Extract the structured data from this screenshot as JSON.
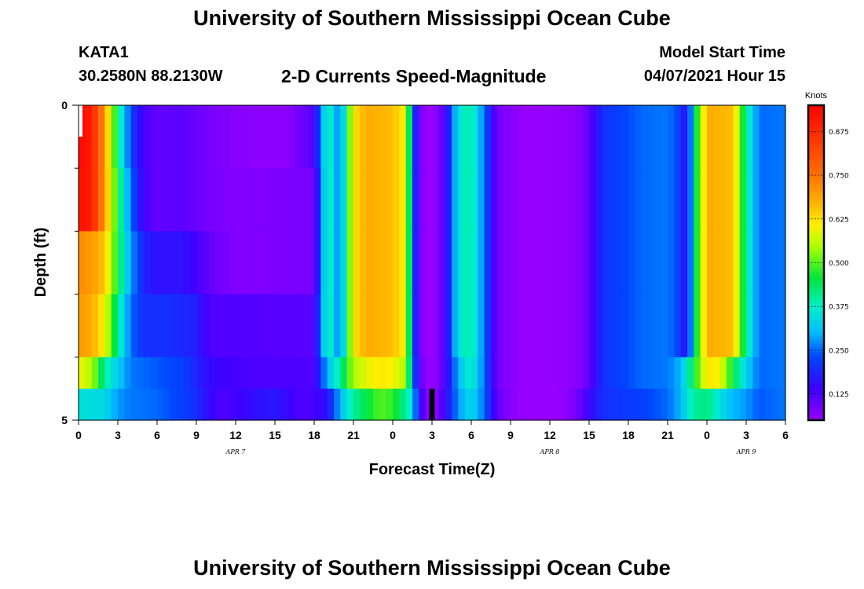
{
  "header": {
    "title": "University of Southern Mississippi Ocean Cube",
    "station": "KATA1",
    "coords": "30.2580N  88.2130W",
    "subtitle": "2-D Currents Speed-Magnitude",
    "model_label": "Model Start Time",
    "model_time": "04/07/2021 Hour 15"
  },
  "footer": {
    "title": "University of Southern Mississippi Ocean Cube"
  },
  "chart_data": {
    "type": "heatmap",
    "title": "2-D Currents Speed-Magnitude",
    "xlabel": "Forecast Time(Z)",
    "ylabel": "Depth (ft)",
    "x_tick_labels": [
      "0",
      "3",
      "6",
      "9",
      "12",
      "15",
      "18",
      "21",
      "0",
      "3",
      "6",
      "9",
      "12",
      "15",
      "18",
      "21",
      "0",
      "3",
      "6"
    ],
    "x_hours_range": [
      0,
      54
    ],
    "date_labels": [
      {
        "text": "APR 7",
        "hour": 12
      },
      {
        "text": "APR 8",
        "hour": 36
      },
      {
        "text": "APR 9",
        "hour": 51
      }
    ],
    "y_tick_labels": [
      "0",
      "5"
    ],
    "ylim": [
      0,
      5
    ],
    "colorbar": {
      "label": "Knots",
      "ticks": [
        "0.875",
        "0.750",
        "0.625",
        "0.500",
        "0.375",
        "0.250",
        "0.125"
      ],
      "range": [
        0.05,
        0.95
      ]
    },
    "depth_rows": [
      {
        "depth_range": [
          0,
          1
        ],
        "keyframes": [
          [
            0,
            0.94
          ],
          [
            1,
            0.9
          ],
          [
            2,
            0.7
          ],
          [
            3,
            0.42
          ],
          [
            4,
            0.22
          ],
          [
            5,
            0.13
          ],
          [
            6,
            0.1
          ],
          [
            8,
            0.11
          ],
          [
            10,
            0.08
          ],
          [
            13,
            0.06
          ],
          [
            16,
            0.06
          ],
          [
            18,
            0.12
          ],
          [
            19,
            0.4
          ],
          [
            20,
            0.25
          ],
          [
            21,
            0.62
          ],
          [
            22,
            0.68
          ],
          [
            24,
            0.66
          ],
          [
            25,
            0.6
          ],
          [
            25.5,
            0.28
          ],
          [
            26,
            0.08
          ],
          [
            27,
            0.04
          ],
          [
            28,
            0.12
          ],
          [
            29,
            0.35
          ],
          [
            30,
            0.4
          ],
          [
            31,
            0.25
          ],
          [
            32,
            0.08
          ],
          [
            34,
            0.05
          ],
          [
            36,
            0.05
          ],
          [
            38,
            0.06
          ],
          [
            39,
            0.1
          ],
          [
            40,
            0.2
          ],
          [
            43,
            0.25
          ],
          [
            45,
            0.26
          ],
          [
            46,
            0.22
          ],
          [
            46.5,
            0.12
          ],
          [
            47,
            0.4
          ],
          [
            48,
            0.68
          ],
          [
            50,
            0.66
          ],
          [
            51,
            0.4
          ],
          [
            52,
            0.25
          ],
          [
            54,
            0.26
          ]
        ]
      },
      {
        "depth_range": [
          1,
          2
        ],
        "keyframes": [
          [
            0,
            0.92
          ],
          [
            1,
            0.9
          ],
          [
            2,
            0.7
          ],
          [
            3,
            0.45
          ],
          [
            4,
            0.25
          ],
          [
            5,
            0.13
          ],
          [
            6,
            0.1
          ],
          [
            8,
            0.11
          ],
          [
            10,
            0.08
          ],
          [
            12,
            0.07
          ],
          [
            18,
            0.08
          ],
          [
            19,
            0.4
          ],
          [
            20,
            0.25
          ],
          [
            21,
            0.62
          ],
          [
            22,
            0.68
          ],
          [
            24,
            0.66
          ],
          [
            25,
            0.6
          ],
          [
            25.5,
            0.28
          ],
          [
            26,
            0.08
          ],
          [
            27,
            0.04
          ],
          [
            28,
            0.12
          ],
          [
            29,
            0.35
          ],
          [
            30,
            0.4
          ],
          [
            31,
            0.25
          ],
          [
            32,
            0.08
          ],
          [
            34,
            0.05
          ],
          [
            36,
            0.05
          ],
          [
            38,
            0.06
          ],
          [
            39,
            0.1
          ],
          [
            40,
            0.2
          ],
          [
            43,
            0.25
          ],
          [
            45,
            0.26
          ],
          [
            46,
            0.22
          ],
          [
            46.5,
            0.12
          ],
          [
            47,
            0.4
          ],
          [
            48,
            0.68
          ],
          [
            50,
            0.66
          ],
          [
            51,
            0.4
          ],
          [
            52,
            0.25
          ],
          [
            54,
            0.26
          ]
        ]
      },
      {
        "depth_range": [
          2,
          3
        ],
        "keyframes": [
          [
            0,
            0.72
          ],
          [
            1,
            0.7
          ],
          [
            2,
            0.65
          ],
          [
            3,
            0.45
          ],
          [
            4,
            0.28
          ],
          [
            5,
            0.18
          ],
          [
            6,
            0.16
          ],
          [
            8,
            0.16
          ],
          [
            10,
            0.1
          ],
          [
            12,
            0.07
          ],
          [
            18,
            0.08
          ],
          [
            19,
            0.4
          ],
          [
            20,
            0.25
          ],
          [
            21,
            0.62
          ],
          [
            22,
            0.68
          ],
          [
            24,
            0.66
          ],
          [
            25,
            0.6
          ],
          [
            25.5,
            0.28
          ],
          [
            26,
            0.08
          ],
          [
            27,
            0.04
          ],
          [
            28,
            0.12
          ],
          [
            29,
            0.35
          ],
          [
            30,
            0.4
          ],
          [
            31,
            0.25
          ],
          [
            32,
            0.08
          ],
          [
            34,
            0.05
          ],
          [
            36,
            0.05
          ],
          [
            38,
            0.06
          ],
          [
            39,
            0.1
          ],
          [
            40,
            0.2
          ],
          [
            43,
            0.25
          ],
          [
            45,
            0.26
          ],
          [
            46,
            0.22
          ],
          [
            46.5,
            0.12
          ],
          [
            47,
            0.4
          ],
          [
            48,
            0.68
          ],
          [
            50,
            0.66
          ],
          [
            51,
            0.4
          ],
          [
            52,
            0.25
          ],
          [
            54,
            0.26
          ]
        ]
      },
      {
        "depth_range": [
          3,
          4
        ],
        "keyframes": [
          [
            0,
            0.7
          ],
          [
            1,
            0.68
          ],
          [
            2,
            0.6
          ],
          [
            3,
            0.4
          ],
          [
            4,
            0.25
          ],
          [
            5,
            0.2
          ],
          [
            7,
            0.2
          ],
          [
            9,
            0.18
          ],
          [
            10,
            0.12
          ],
          [
            18,
            0.11
          ],
          [
            19,
            0.4
          ],
          [
            20,
            0.25
          ],
          [
            21,
            0.62
          ],
          [
            22,
            0.68
          ],
          [
            24,
            0.66
          ],
          [
            25,
            0.6
          ],
          [
            25.5,
            0.28
          ],
          [
            26,
            0.08
          ],
          [
            27,
            0.04
          ],
          [
            28,
            0.12
          ],
          [
            29,
            0.35
          ],
          [
            30,
            0.4
          ],
          [
            31,
            0.25
          ],
          [
            32,
            0.08
          ],
          [
            34,
            0.05
          ],
          [
            36,
            0.05
          ],
          [
            38,
            0.06
          ],
          [
            39,
            0.1
          ],
          [
            40,
            0.2
          ],
          [
            43,
            0.25
          ],
          [
            45,
            0.26
          ],
          [
            46,
            0.22
          ],
          [
            46.5,
            0.12
          ],
          [
            47,
            0.4
          ],
          [
            48,
            0.68
          ],
          [
            50,
            0.66
          ],
          [
            51,
            0.4
          ],
          [
            52,
            0.25
          ],
          [
            54,
            0.26
          ]
        ]
      },
      {
        "depth_range": [
          4,
          4.5
        ],
        "keyframes": [
          [
            0,
            0.6
          ],
          [
            1,
            0.55
          ],
          [
            2,
            0.4
          ],
          [
            3,
            0.32
          ],
          [
            4,
            0.26
          ],
          [
            6,
            0.24
          ],
          [
            8,
            0.22
          ],
          [
            10,
            0.15
          ],
          [
            12,
            0.13
          ],
          [
            18,
            0.12
          ],
          [
            19,
            0.3
          ],
          [
            20,
            0.4
          ],
          [
            21,
            0.55
          ],
          [
            23,
            0.62
          ],
          [
            24,
            0.6
          ],
          [
            25,
            0.55
          ],
          [
            25.5,
            0.3
          ],
          [
            26,
            0.1
          ],
          [
            27,
            0.04
          ],
          [
            28,
            0.12
          ],
          [
            29,
            0.3
          ],
          [
            30,
            0.38
          ],
          [
            31,
            0.25
          ],
          [
            32,
            0.08
          ],
          [
            34,
            0.05
          ],
          [
            36,
            0.05
          ],
          [
            38,
            0.06
          ],
          [
            39,
            0.1
          ],
          [
            40,
            0.2
          ],
          [
            43,
            0.25
          ],
          [
            45,
            0.26
          ],
          [
            46,
            0.3
          ],
          [
            47,
            0.45
          ],
          [
            48,
            0.62
          ],
          [
            49,
            0.6
          ],
          [
            50,
            0.45
          ],
          [
            51,
            0.33
          ],
          [
            52,
            0.25
          ],
          [
            54,
            0.26
          ]
        ]
      },
      {
        "depth_range": [
          4.5,
          5
        ],
        "keyframes": [
          [
            0,
            0.35
          ],
          [
            2,
            0.34
          ],
          [
            3,
            0.28
          ],
          [
            4,
            0.26
          ],
          [
            6,
            0.25
          ],
          [
            8,
            0.22
          ],
          [
            9,
            0.2
          ],
          [
            10,
            0.15
          ],
          [
            11,
            0.12
          ],
          [
            13,
            0.15
          ],
          [
            15,
            0.17
          ],
          [
            17,
            0.12
          ],
          [
            18,
            0.13
          ],
          [
            19,
            0.16
          ],
          [
            20,
            0.3
          ],
          [
            21,
            0.4
          ],
          [
            22,
            0.45
          ],
          [
            23,
            0.5
          ],
          [
            24,
            0.48
          ],
          [
            25,
            0.4
          ],
          [
            25.5,
            0.35
          ],
          [
            26,
            0.15
          ],
          [
            27,
            0.04
          ],
          [
            28,
            0.14
          ],
          [
            29,
            0.28
          ],
          [
            30,
            0.34
          ],
          [
            31,
            0.25
          ],
          [
            32,
            0.1
          ],
          [
            34,
            0.03
          ],
          [
            36,
            0.03
          ],
          [
            38,
            0.08
          ],
          [
            39,
            0.14
          ],
          [
            40,
            0.2
          ],
          [
            43,
            0.22
          ],
          [
            45,
            0.25
          ],
          [
            46,
            0.3
          ],
          [
            47,
            0.4
          ],
          [
            48,
            0.42
          ],
          [
            49,
            0.35
          ],
          [
            50,
            0.3
          ],
          [
            51,
            0.28
          ],
          [
            52,
            0.24
          ],
          [
            54,
            0.26
          ]
        ]
      }
    ],
    "missing_data": [
      {
        "hours": [
          0,
          0.3
        ],
        "depth_range": [
          0,
          0.5
        ],
        "color": "#ffffff"
      },
      {
        "hours": [
          26.8,
          27.2
        ],
        "depth_range": [
          4.5,
          5
        ],
        "color": "#000000"
      }
    ]
  }
}
